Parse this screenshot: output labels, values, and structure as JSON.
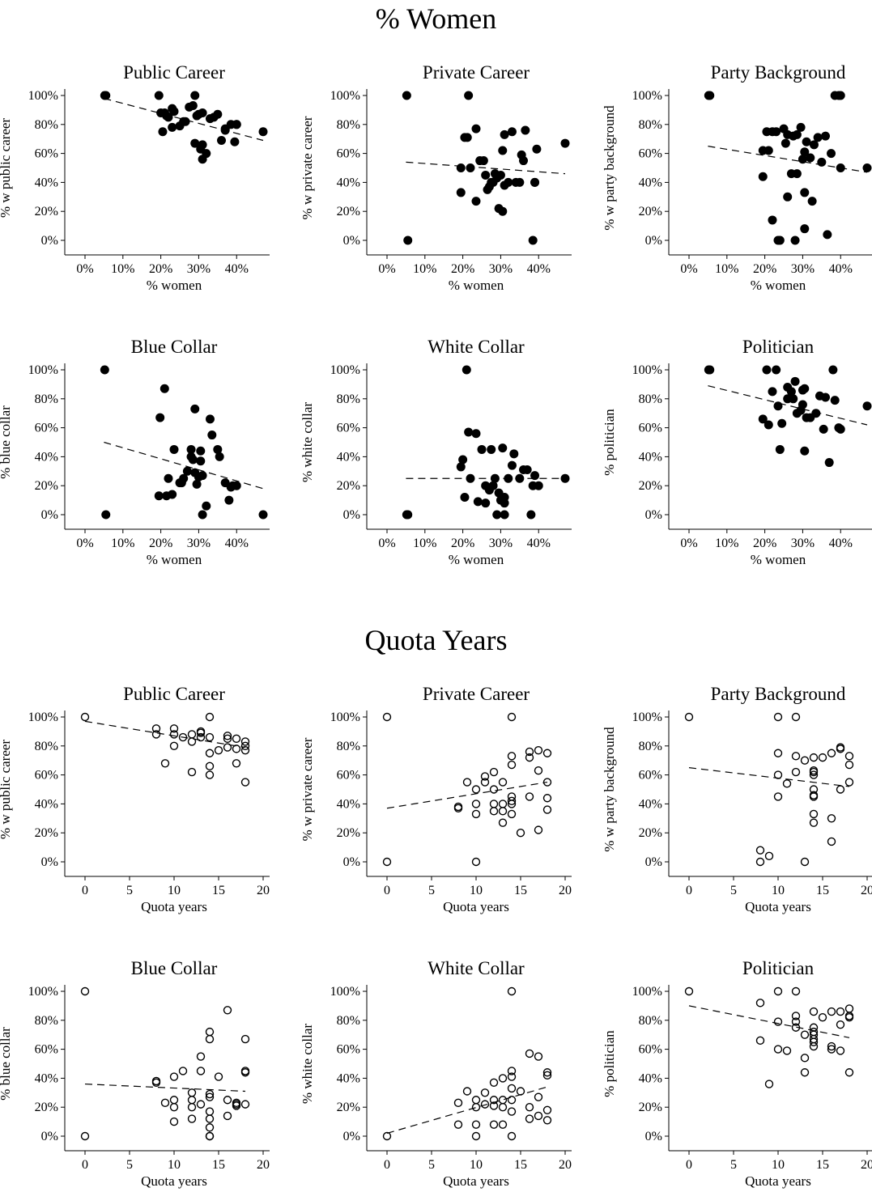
{
  "sections": [
    {
      "title": "% Women"
    },
    {
      "title": "Quota Years"
    }
  ],
  "chart_data": [
    {
      "type": "scatter",
      "title": "Public Career",
      "xlabel": "% women",
      "ylabel": "% w public career",
      "xlim": [
        0,
        47
      ],
      "ylim": [
        0,
        100
      ],
      "xticks": [
        "0%",
        "10%",
        "20%",
        "30%",
        "40%"
      ],
      "yticks": [
        "0%",
        "20%",
        "40%",
        "60%",
        "80%",
        "100%"
      ],
      "marker": "filled",
      "x": [
        5.2,
        5.5,
        19.5,
        20,
        20.5,
        21,
        21.5,
        22,
        23,
        23,
        23.5,
        25,
        26,
        26.5,
        27.5,
        28.5,
        29,
        29,
        29.5,
        30,
        30.5,
        31,
        31,
        31,
        32,
        33,
        34,
        35,
        36,
        37,
        37,
        38.5,
        39.5,
        40,
        40,
        47
      ],
      "y": [
        100,
        100,
        100,
        88,
        75,
        88,
        86,
        85,
        91,
        78,
        89,
        79,
        82,
        82,
        92,
        93,
        67,
        100,
        86,
        87,
        63,
        66,
        56,
        88,
        60,
        84,
        85,
        87,
        69,
        77,
        76,
        80,
        68,
        80,
        80,
        75
      ],
      "trend": {
        "x": [
          5,
          47
        ],
        "y": [
          98,
          69
        ]
      }
    },
    {
      "type": "scatter",
      "title": "Private Career",
      "xlabel": "% women",
      "ylabel": "% w private career",
      "xlim": [
        0,
        47
      ],
      "ylim": [
        0,
        100
      ],
      "xticks": [
        "0%",
        "10%",
        "20%",
        "30%",
        "40%"
      ],
      "yticks": [
        "0%",
        "20%",
        "40%",
        "60%",
        "80%",
        "100%"
      ],
      "marker": "filled",
      "x": [
        5.2,
        5.5,
        19.5,
        19.5,
        20.5,
        21.5,
        21.2,
        22,
        23.5,
        23.5,
        24.5,
        25.5,
        26,
        26.5,
        27,
        27.5,
        28,
        28.5,
        29,
        29.5,
        30,
        30.5,
        30.5,
        31,
        31,
        32,
        33,
        34,
        35,
        35.5,
        36,
        36.5,
        38.5,
        39,
        39,
        39.5,
        47
      ],
      "y": [
        100,
        0,
        33,
        50,
        71,
        100,
        71,
        50,
        27,
        77,
        55,
        55,
        45,
        35,
        37,
        40,
        40,
        46,
        43,
        22,
        45,
        20,
        62,
        73,
        38,
        40,
        75,
        40,
        40,
        59,
        55,
        76,
        0,
        40,
        40,
        63,
        67
      ],
      "trend": {
        "x": [
          5,
          47
        ],
        "y": [
          54,
          46
        ]
      }
    },
    {
      "type": "scatter",
      "title": "Party Background",
      "xlabel": "% women",
      "ylabel": "% w party background",
      "xlim": [
        0,
        47
      ],
      "ylim": [
        0,
        100
      ],
      "xticks": [
        "0%",
        "10%",
        "20%",
        "30%",
        "40%"
      ],
      "yticks": [
        "0%",
        "20%",
        "40%",
        "60%",
        "80%",
        "100%"
      ],
      "marker": "filled",
      "x": [
        5.2,
        5.5,
        19.5,
        19.5,
        20.5,
        21,
        22,
        22,
        23,
        23.5,
        24,
        25,
        25.5,
        26,
        26,
        27,
        27.5,
        28,
        28.5,
        28.5,
        29.5,
        30,
        30.5,
        30.5,
        30.5,
        31,
        32,
        32.5,
        33,
        34,
        35,
        36,
        36.5,
        37.5,
        38.5,
        39.5,
        40,
        40,
        47
      ],
      "y": [
        100,
        100,
        62,
        44,
        75,
        62,
        75,
        14,
        75,
        0,
        0,
        77,
        67,
        30,
        73,
        46,
        72,
        0,
        46,
        73,
        78,
        56,
        61,
        33,
        8,
        68,
        57,
        27,
        66,
        71,
        54,
        72,
        4,
        60,
        100,
        100,
        50,
        100,
        50
      ],
      "trend": {
        "x": [
          5,
          47
        ],
        "y": [
          65,
          47
        ]
      }
    },
    {
      "type": "scatter",
      "title": "Blue Collar",
      "xlabel": "% women",
      "ylabel": "% blue collar",
      "xlim": [
        0,
        47
      ],
      "ylim": [
        0,
        100
      ],
      "xticks": [
        "0%",
        "10%",
        "20%",
        "30%",
        "40%"
      ],
      "yticks": [
        "0%",
        "20%",
        "40%",
        "60%",
        "80%",
        "100%"
      ],
      "marker": "filled",
      "x": [
        5.2,
        5.5,
        19.5,
        19.8,
        21,
        21.5,
        22,
        23,
        23.5,
        25,
        25.5,
        26,
        27,
        28,
        28,
        28.5,
        29,
        29,
        29.5,
        30,
        30.5,
        30.5,
        31,
        31,
        32,
        33,
        33.5,
        35,
        35.5,
        37,
        38,
        38.5,
        39,
        40,
        47
      ],
      "y": [
        100,
        0,
        13,
        67,
        87,
        13,
        25,
        14,
        45,
        22,
        22,
        25,
        30,
        40,
        45,
        38,
        29,
        73,
        21,
        26,
        44,
        37,
        27,
        0,
        6,
        66,
        55,
        45,
        40,
        22,
        10,
        19,
        20,
        20,
        0
      ],
      "trend": {
        "x": [
          5,
          47
        ],
        "y": [
          50,
          18
        ]
      }
    },
    {
      "type": "scatter",
      "title": "White Collar",
      "xlabel": "% women",
      "ylabel": "% white collar",
      "xlim": [
        0,
        47
      ],
      "ylim": [
        0,
        100
      ],
      "xticks": [
        "0%",
        "10%",
        "20%",
        "30%",
        "40%"
      ],
      "yticks": [
        "0%",
        "20%",
        "40%",
        "60%",
        "80%",
        "100%"
      ],
      "marker": "filled",
      "x": [
        5.2,
        5.5,
        19.5,
        20,
        20.5,
        21,
        21.5,
        22,
        23.5,
        24,
        25,
        26,
        26,
        27,
        27.5,
        28,
        28.5,
        29,
        29.5,
        30,
        30.5,
        31,
        31,
        31,
        32,
        33,
        33.5,
        35,
        36,
        37,
        38,
        38.5,
        39,
        40,
        47
      ],
      "y": [
        0,
        0,
        33,
        38,
        12,
        100,
        57,
        25,
        56,
        9,
        45,
        20,
        8,
        17,
        45,
        20,
        25,
        0,
        15,
        10,
        46,
        12,
        0,
        8,
        25,
        34,
        42,
        25,
        31,
        31,
        0,
        20,
        27,
        20,
        25
      ],
      "trend": {
        "x": [
          5,
          47
        ],
        "y": [
          25,
          25
        ]
      }
    },
    {
      "type": "scatter",
      "title": "Politician",
      "xlabel": "% women",
      "ylabel": "% politician",
      "xlim": [
        0,
        47
      ],
      "ylim": [
        0,
        100
      ],
      "xticks": [
        "0%",
        "10%",
        "20%",
        "30%",
        "40%"
      ],
      "yticks": [
        "0%",
        "20%",
        "40%",
        "60%",
        "80%",
        "100%"
      ],
      "marker": "filled",
      "x": [
        5.2,
        5.5,
        19.5,
        20.5,
        21,
        22,
        23,
        23.5,
        24,
        24.5,
        26,
        26,
        27,
        27.5,
        28,
        28.5,
        29.5,
        30,
        30,
        30.5,
        30.5,
        31,
        32,
        33.5,
        34.5,
        35.5,
        36,
        37,
        38,
        38.5,
        39.5,
        40,
        47
      ],
      "y": [
        100,
        100,
        66,
        100,
        62,
        85,
        100,
        75,
        45,
        63,
        80,
        88,
        85,
        80,
        92,
        70,
        72,
        76,
        86,
        87,
        44,
        67,
        67,
        70,
        82,
        59,
        81,
        36,
        100,
        79,
        60,
        59,
        75
      ],
      "trend": {
        "x": [
          5,
          47
        ],
        "y": [
          89,
          62
        ]
      }
    },
    {
      "type": "scatter",
      "title": "Public Career",
      "xlabel": "Quota years",
      "ylabel": "% w public career",
      "xlim": [
        0,
        20
      ],
      "ylim": [
        0,
        100
      ],
      "xticks": [
        "0",
        "5",
        "10",
        "15",
        "20"
      ],
      "yticks": [
        "0%",
        "20%",
        "40%",
        "60%",
        "80%",
        "100%"
      ],
      "marker": "hollow",
      "x": [
        0,
        8,
        8,
        9,
        10,
        10,
        10,
        11,
        12,
        12,
        12,
        13,
        13,
        13,
        14,
        14,
        14,
        14,
        14,
        15,
        16,
        16,
        16,
        17,
        17,
        17,
        18,
        18,
        18,
        18
      ],
      "y": [
        100,
        92,
        88,
        68,
        92,
        88,
        80,
        86,
        88,
        83,
        62,
        90,
        89,
        86,
        100,
        86,
        75,
        66,
        60,
        77,
        87,
        85,
        79,
        85,
        78,
        68,
        83,
        80,
        77,
        55
      ],
      "trend": {
        "x": [
          0,
          18
        ],
        "y": [
          97,
          79
        ]
      }
    },
    {
      "type": "scatter",
      "title": "Private Career",
      "xlabel": "Quota years",
      "ylabel": "% w private career",
      "xlim": [
        0,
        20
      ],
      "ylim": [
        0,
        100
      ],
      "xticks": [
        "0",
        "5",
        "10",
        "15",
        "20"
      ],
      "yticks": [
        "0%",
        "20%",
        "40%",
        "60%",
        "80%",
        "100%"
      ],
      "marker": "hollow",
      "x": [
        0,
        0,
        8,
        8,
        9,
        10,
        10,
        10,
        10,
        11,
        11,
        12,
        12,
        12,
        12,
        13,
        13,
        13,
        13,
        14,
        14,
        14,
        14,
        14,
        14,
        14,
        15,
        16,
        16,
        16,
        17,
        17,
        17,
        18,
        18,
        18,
        18
      ],
      "y": [
        100,
        0,
        38,
        37,
        55,
        50,
        40,
        33,
        0,
        59,
        55,
        62,
        50,
        40,
        35,
        55,
        40,
        35,
        27,
        100,
        73,
        67,
        45,
        42,
        40,
        33,
        20,
        76,
        72,
        45,
        77,
        63,
        22,
        75,
        55,
        44,
        36
      ],
      "trend": {
        "x": [
          0,
          18
        ],
        "y": [
          37,
          55
        ]
      }
    },
    {
      "type": "scatter",
      "title": "Party Background",
      "xlabel": "Quota years",
      "ylabel": "% w party background",
      "xlim": [
        0,
        20
      ],
      "ylim": [
        0,
        100
      ],
      "xticks": [
        "0",
        "5",
        "10",
        "15",
        "20"
      ],
      "yticks": [
        "0%",
        "20%",
        "40%",
        "60%",
        "80%",
        "100%"
      ],
      "marker": "hollow",
      "x": [
        0,
        8,
        8,
        9,
        10,
        10,
        10,
        10,
        11,
        12,
        12,
        12,
        13,
        13,
        14,
        14,
        14,
        14,
        14,
        14,
        14,
        14,
        14,
        15,
        16,
        16,
        16,
        17,
        17,
        17,
        18,
        18,
        18
      ],
      "y": [
        100,
        8,
        0,
        4,
        100,
        75,
        60,
        45,
        54,
        100,
        73,
        62,
        70,
        0,
        72,
        62,
        60,
        50,
        46,
        45,
        33,
        27,
        63,
        72,
        75,
        30,
        14,
        79,
        78,
        50,
        73,
        67,
        55
      ],
      "trend": {
        "x": [
          0,
          18
        ],
        "y": [
          65,
          52
        ]
      }
    },
    {
      "type": "scatter",
      "title": "Blue Collar",
      "xlabel": "Quota years",
      "ylabel": "% blue collar",
      "xlim": [
        0,
        20
      ],
      "ylim": [
        0,
        100
      ],
      "xticks": [
        "0",
        "5",
        "10",
        "15",
        "20"
      ],
      "yticks": [
        "0%",
        "20%",
        "40%",
        "60%",
        "80%",
        "100%"
      ],
      "marker": "hollow",
      "x": [
        0,
        0,
        8,
        8,
        9,
        10,
        10,
        10,
        10,
        11,
        12,
        12,
        12,
        12,
        13,
        13,
        13,
        14,
        14,
        14,
        14,
        14,
        14,
        14,
        14,
        14,
        15,
        16,
        16,
        16,
        17,
        17,
        17,
        18,
        18,
        18,
        18
      ],
      "y": [
        100,
        0,
        38,
        37,
        23,
        41,
        25,
        20,
        10,
        45,
        30,
        25,
        20,
        12,
        55,
        45,
        22,
        72,
        67,
        29,
        27,
        17,
        12,
        6,
        0,
        0,
        41,
        87,
        25,
        14,
        23,
        22,
        21,
        67,
        45,
        44,
        22
      ],
      "trend": {
        "x": [
          0,
          18
        ],
        "y": [
          36,
          31
        ]
      }
    },
    {
      "type": "scatter",
      "title": "White Collar",
      "xlabel": "Quota years",
      "ylabel": "% white collar",
      "xlim": [
        0,
        20
      ],
      "ylim": [
        0,
        100
      ],
      "xticks": [
        "0",
        "5",
        "10",
        "15",
        "20"
      ],
      "yticks": [
        "0%",
        "20%",
        "40%",
        "60%",
        "80%",
        "100%"
      ],
      "marker": "hollow",
      "x": [
        0,
        8,
        8,
        9,
        10,
        10,
        10,
        10,
        11,
        11,
        12,
        12,
        12,
        12,
        13,
        13,
        13,
        13,
        14,
        14,
        14,
        14,
        14,
        14,
        14,
        15,
        16,
        16,
        16,
        17,
        17,
        17,
        18,
        18,
        18,
        18
      ],
      "y": [
        0,
        23,
        8,
        31,
        25,
        20,
        8,
        0,
        30,
        22,
        37,
        25,
        21,
        8,
        40,
        25,
        20,
        8,
        100,
        45,
        41,
        33,
        25,
        17,
        0,
        31,
        57,
        20,
        12,
        55,
        27,
        14,
        44,
        42,
        18,
        11
      ],
      "trend": {
        "x": [
          0,
          18
        ],
        "y": [
          2,
          34
        ]
      }
    },
    {
      "type": "scatter",
      "title": "Politician",
      "xlabel": "Quota years",
      "ylabel": "% politician",
      "xlim": [
        0,
        20
      ],
      "ylim": [
        0,
        100
      ],
      "xticks": [
        "0",
        "5",
        "10",
        "15",
        "20"
      ],
      "yticks": [
        "0%",
        "20%",
        "40%",
        "60%",
        "80%",
        "100%"
      ],
      "marker": "hollow",
      "x": [
        0,
        8,
        8,
        9,
        10,
        10,
        10,
        11,
        12,
        12,
        12,
        12,
        13,
        13,
        13,
        14,
        14,
        14,
        14,
        14,
        14,
        14,
        15,
        16,
        16,
        16,
        17,
        17,
        17,
        18,
        18,
        18,
        18
      ],
      "y": [
        100,
        92,
        66,
        36,
        100,
        79,
        60,
        59,
        100,
        83,
        79,
        75,
        70,
        54,
        44,
        86,
        75,
        72,
        70,
        67,
        65,
        62,
        82,
        86,
        62,
        60,
        86,
        77,
        59,
        88,
        83,
        82,
        44
      ],
      "trend": {
        "x": [
          0,
          18
        ],
        "y": [
          90,
          68
        ]
      }
    }
  ]
}
